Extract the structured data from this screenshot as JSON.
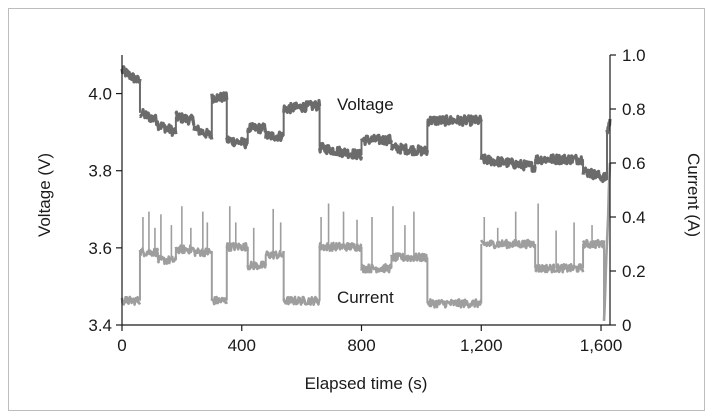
{
  "chart_data": {
    "type": "line",
    "xlabel": "Elapsed time (s)",
    "ylabel_left": "Voltage (V)",
    "ylabel_right": "Current (A)",
    "xlim": [
      0,
      1630
    ],
    "ylim_left": [
      3.4,
      4.1
    ],
    "ylim_right": [
      0,
      1.0
    ],
    "x_ticks": [
      0,
      400,
      800,
      1200,
      1600
    ],
    "x_tick_labels": [
      "0",
      "400",
      "800",
      "1,200",
      "1,600"
    ],
    "y_left_ticks": [
      3.4,
      3.6,
      3.8,
      4.0
    ],
    "y_left_tick_labels": [
      "3.4",
      "3.6",
      "3.8",
      "4.0"
    ],
    "y_right_ticks": [
      0,
      0.2,
      0.4,
      0.6,
      0.8,
      1.0
    ],
    "y_right_tick_labels": [
      "0",
      "0.2",
      "0.4",
      "0.6",
      "0.8",
      "1.0"
    ],
    "grid": false,
    "series": [
      {
        "name": "Voltage",
        "axis": "left",
        "color": "#6b6b6b",
        "segments": [
          {
            "x0": 0,
            "x1": 60,
            "y0": 4.06,
            "y1": 4.03
          },
          {
            "x0": 60,
            "x1": 120,
            "y0": 3.95,
            "y1": 3.93
          },
          {
            "x0": 120,
            "x1": 180,
            "y0": 3.92,
            "y1": 3.9
          },
          {
            "x0": 180,
            "x1": 240,
            "y0": 3.94,
            "y1": 3.93
          },
          {
            "x0": 240,
            "x1": 300,
            "y0": 3.91,
            "y1": 3.89
          },
          {
            "x0": 300,
            "x1": 350,
            "y0": 3.99,
            "y1": 3.99
          },
          {
            "x0": 350,
            "x1": 420,
            "y0": 3.88,
            "y1": 3.87
          },
          {
            "x0": 420,
            "x1": 480,
            "y0": 3.91,
            "y1": 3.91
          },
          {
            "x0": 480,
            "x1": 540,
            "y0": 3.89,
            "y1": 3.89
          },
          {
            "x0": 540,
            "x1": 660,
            "y0": 3.96,
            "y1": 3.97
          },
          {
            "x0": 660,
            "x1": 800,
            "y0": 3.86,
            "y1": 3.84
          },
          {
            "x0": 800,
            "x1": 900,
            "y0": 3.88,
            "y1": 3.88
          },
          {
            "x0": 900,
            "x1": 1020,
            "y0": 3.86,
            "y1": 3.85
          },
          {
            "x0": 1020,
            "x1": 1200,
            "y0": 3.93,
            "y1": 3.93
          },
          {
            "x0": 1200,
            "x1": 1380,
            "y0": 3.83,
            "y1": 3.81
          },
          {
            "x0": 1380,
            "x1": 1540,
            "y0": 3.83,
            "y1": 3.83
          },
          {
            "x0": 1540,
            "x1": 1620,
            "y0": 3.8,
            "y1": 3.78
          },
          {
            "x0": 1620,
            "x1": 1630,
            "y0": 3.9,
            "y1": 3.93
          }
        ]
      },
      {
        "name": "Current",
        "axis": "right",
        "color": "#9e9e9e",
        "segments": [
          {
            "x0": 0,
            "x1": 60,
            "y0": 0.09,
            "y1": 0.09
          },
          {
            "x0": 60,
            "x1": 120,
            "y0": 0.27,
            "y1": 0.27
          },
          {
            "x0": 120,
            "x1": 180,
            "y0": 0.24,
            "y1": 0.24
          },
          {
            "x0": 180,
            "x1": 240,
            "y0": 0.28,
            "y1": 0.28
          },
          {
            "x0": 240,
            "x1": 300,
            "y0": 0.27,
            "y1": 0.27
          },
          {
            "x0": 300,
            "x1": 350,
            "y0": 0.09,
            "y1": 0.09
          },
          {
            "x0": 350,
            "x1": 420,
            "y0": 0.29,
            "y1": 0.29
          },
          {
            "x0": 420,
            "x1": 480,
            "y0": 0.22,
            "y1": 0.22
          },
          {
            "x0": 480,
            "x1": 540,
            "y0": 0.26,
            "y1": 0.26
          },
          {
            "x0": 540,
            "x1": 660,
            "y0": 0.09,
            "y1": 0.09
          },
          {
            "x0": 660,
            "x1": 800,
            "y0": 0.29,
            "y1": 0.29
          },
          {
            "x0": 800,
            "x1": 900,
            "y0": 0.21,
            "y1": 0.21
          },
          {
            "x0": 900,
            "x1": 1020,
            "y0": 0.25,
            "y1": 0.25
          },
          {
            "x0": 1020,
            "x1": 1200,
            "y0": 0.08,
            "y1": 0.08
          },
          {
            "x0": 1200,
            "x1": 1380,
            "y0": 0.3,
            "y1": 0.3
          },
          {
            "x0": 1380,
            "x1": 1540,
            "y0": 0.21,
            "y1": 0.21
          },
          {
            "x0": 1540,
            "x1": 1610,
            "y0": 0.3,
            "y1": 0.3
          },
          {
            "x0": 1610,
            "x1": 1630,
            "y0": 0.02,
            "y1": 0.6
          }
        ],
        "spikes": [
          {
            "x": 70,
            "y": 0.4
          },
          {
            "x": 90,
            "y": 0.42
          },
          {
            "x": 110,
            "y": 0.36
          },
          {
            "x": 130,
            "y": 0.41
          },
          {
            "x": 165,
            "y": 0.37
          },
          {
            "x": 200,
            "y": 0.44
          },
          {
            "x": 230,
            "y": 0.36
          },
          {
            "x": 270,
            "y": 0.42
          },
          {
            "x": 285,
            "y": 0.38
          },
          {
            "x": 360,
            "y": 0.44
          },
          {
            "x": 380,
            "y": 0.38
          },
          {
            "x": 440,
            "y": 0.36
          },
          {
            "x": 505,
            "y": 0.43
          },
          {
            "x": 530,
            "y": 0.38
          },
          {
            "x": 665,
            "y": 0.4
          },
          {
            "x": 690,
            "y": 0.45
          },
          {
            "x": 740,
            "y": 0.42
          },
          {
            "x": 785,
            "y": 0.39
          },
          {
            "x": 835,
            "y": 0.4
          },
          {
            "x": 905,
            "y": 0.44
          },
          {
            "x": 945,
            "y": 0.37
          },
          {
            "x": 975,
            "y": 0.42
          },
          {
            "x": 1210,
            "y": 0.4
          },
          {
            "x": 1255,
            "y": 0.36
          },
          {
            "x": 1315,
            "y": 0.42
          },
          {
            "x": 1390,
            "y": 0.45
          },
          {
            "x": 1450,
            "y": 0.35
          },
          {
            "x": 1510,
            "y": 0.38
          },
          {
            "x": 1570,
            "y": 0.37
          }
        ]
      }
    ]
  }
}
